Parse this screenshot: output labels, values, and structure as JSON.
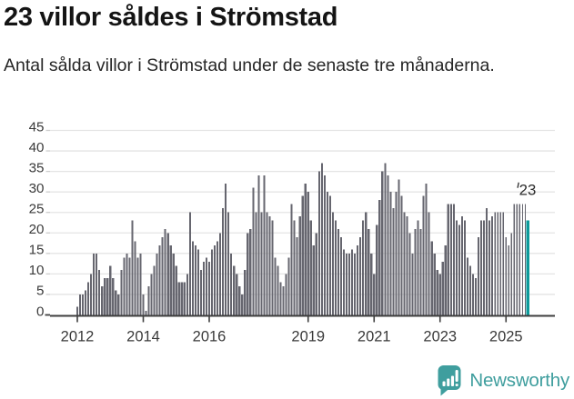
{
  "header": {
    "title": "23 villor såldes i Strömstad",
    "subtitle": "Antal sålda villor i Strömstad under de senaste tre månaderna."
  },
  "chart_data": {
    "type": "bar",
    "title": "23 villor såldes i Strömstad",
    "xlabel": "",
    "ylabel": "",
    "ylim": [
      0,
      45
    ],
    "grid": true,
    "yticks": [
      0,
      5,
      10,
      15,
      20,
      25,
      30,
      35,
      40,
      45
    ],
    "xticks": [
      2012,
      2014,
      2016,
      2019,
      2021,
      2023,
      2025
    ],
    "period": "monthly, rolling 3 months, Jan 2012 – Sep 2025",
    "series_by_year": [
      {
        "year": 2012,
        "values": [
          2,
          5,
          5,
          6,
          8,
          10,
          15,
          15,
          11,
          7,
          9,
          9
        ]
      },
      {
        "year": 2013,
        "values": [
          12,
          9,
          6,
          5,
          11,
          14,
          15,
          14,
          23,
          18,
          14,
          15
        ]
      },
      {
        "year": 2014,
        "values": [
          5,
          1,
          7,
          10,
          12,
          15,
          17,
          19,
          21,
          20,
          17,
          15
        ]
      },
      {
        "year": 2015,
        "values": [
          12,
          8,
          8,
          8,
          10,
          25,
          18,
          17,
          16,
          11,
          13,
          14
        ]
      },
      {
        "year": 2016,
        "values": [
          13,
          16,
          17,
          18,
          20,
          26,
          32,
          25,
          15,
          12,
          10,
          7
        ]
      },
      {
        "year": 2017,
        "values": [
          5,
          11,
          20,
          21,
          31,
          25,
          34,
          25,
          34,
          25,
          24,
          23
        ]
      },
      {
        "year": 2018,
        "values": [
          14,
          12,
          8,
          7,
          10,
          14,
          27,
          23,
          19,
          24,
          29,
          32
        ]
      },
      {
        "year": 2019,
        "values": [
          30,
          23,
          17,
          20,
          35,
          37,
          34,
          30,
          29,
          25,
          23,
          21
        ]
      },
      {
        "year": 2020,
        "values": [
          19,
          16,
          15,
          15,
          16,
          15,
          17,
          19,
          23,
          25,
          21,
          15
        ]
      },
      {
        "year": 2021,
        "values": [
          10,
          22,
          28,
          35,
          37,
          34,
          30,
          26,
          30,
          33,
          29,
          25
        ]
      },
      {
        "year": 2022,
        "values": [
          24,
          20,
          15,
          21,
          23,
          21,
          29,
          32,
          25,
          18,
          15,
          11
        ]
      },
      {
        "year": 2023,
        "values": [
          10,
          13,
          17,
          27,
          27,
          27,
          23,
          22,
          24,
          23,
          14,
          12
        ]
      },
      {
        "year": 2024,
        "values": [
          10,
          9,
          19,
          23,
          23,
          26,
          23,
          24,
          25,
          25,
          25,
          25
        ]
      },
      {
        "year": 2025,
        "values": [
          19,
          17,
          20,
          27,
          27,
          27,
          27,
          27,
          23
        ]
      }
    ],
    "annotation": {
      "text": "23",
      "value": 23,
      "applies_to": "last-bar"
    },
    "thin_bar_count_before_highlight": 13,
    "colors": {
      "bar": "#66666f",
      "highlight": "#0d9b9b",
      "gridline": "#e4e4e4",
      "grid_stub": "#cdcdcd",
      "axis": "#3e3e3e",
      "tick_label": "#3a3a3a",
      "annotation": "#2b2b2b"
    }
  },
  "footer": {
    "logo_text": "Newsworthy",
    "logo_color": "#3f9e9e"
  }
}
